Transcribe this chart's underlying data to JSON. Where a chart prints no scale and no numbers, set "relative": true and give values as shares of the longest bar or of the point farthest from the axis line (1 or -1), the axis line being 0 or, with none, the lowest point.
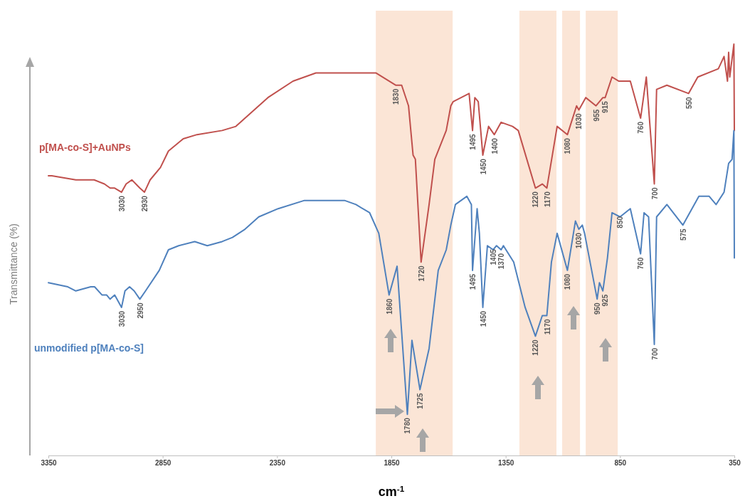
{
  "chart_data": {
    "type": "line",
    "xlabel": "cm$^{-1}$",
    "ylabel": "Transmittance (%)",
    "relative": true,
    "xlim": [
      3350,
      350
    ],
    "xticks": [
      3350,
      2850,
      2350,
      1850,
      1350,
      850,
      350
    ],
    "tick_labels": "x",
    "grid": false,
    "legend": false,
    "marker": "none",
    "line_style": "solid",
    "series": [
      {
        "name": "p[MA-co-S]+AuNPs",
        "color": "#c0504d",
        "x": [
          3350,
          3335,
          3230,
          3150,
          3105,
          3080,
          3060,
          3030,
          3010,
          2985,
          2950,
          2930,
          2905,
          2860,
          2825,
          2760,
          2700,
          2590,
          2530,
          2470,
          2390,
          2280,
          2180,
          2080,
          1918,
          1830,
          1805,
          1775,
          1755,
          1745,
          1720,
          1685,
          1660,
          1610,
          1590,
          1580,
          1510,
          1495,
          1485,
          1470,
          1450,
          1425,
          1400,
          1370,
          1320,
          1295,
          1220,
          1190,
          1170,
          1125,
          1080,
          1040,
          1030,
          1000,
          955,
          925,
          915,
          885,
          855,
          805,
          760,
          735,
          700,
          690,
          645,
          550,
          510,
          420,
          395,
          380,
          375,
          370,
          352,
          350
        ],
        "values": [
          0.68,
          0.68,
          0.67,
          0.67,
          0.66,
          0.65,
          0.65,
          0.64,
          0.66,
          0.67,
          0.65,
          0.64,
          0.67,
          0.7,
          0.74,
          0.77,
          0.78,
          0.79,
          0.8,
          0.83,
          0.87,
          0.91,
          0.93,
          0.93,
          0.93,
          0.9,
          0.9,
          0.85,
          0.73,
          0.72,
          0.47,
          0.61,
          0.72,
          0.79,
          0.85,
          0.86,
          0.88,
          0.79,
          0.87,
          0.86,
          0.73,
          0.8,
          0.78,
          0.81,
          0.8,
          0.79,
          0.65,
          0.66,
          0.65,
          0.8,
          0.78,
          0.85,
          0.84,
          0.87,
          0.85,
          0.87,
          0.87,
          0.92,
          0.91,
          0.91,
          0.82,
          0.92,
          0.66,
          0.89,
          0.9,
          0.88,
          0.92,
          0.94,
          0.97,
          0.91,
          0.98,
          0.92,
          1,
          0.79
        ]
      },
      {
        "name": "unmodified p[MA-co-S]",
        "color": "#4f81bd",
        "x": [
          3350,
          3265,
          3230,
          3165,
          3148,
          3115,
          3095,
          3080,
          3060,
          3030,
          3015,
          2995,
          2975,
          2950,
          2925,
          2865,
          2825,
          2780,
          2710,
          2655,
          2590,
          2545,
          2490,
          2430,
          2345,
          2230,
          2125,
          2055,
          2005,
          1945,
          1905,
          1860,
          1825,
          1780,
          1760,
          1725,
          1685,
          1645,
          1610,
          1590,
          1570,
          1520,
          1500,
          1495,
          1475,
          1465,
          1450,
          1430,
          1405,
          1390,
          1370,
          1360,
          1315,
          1265,
          1220,
          1190,
          1170,
          1150,
          1125,
          1080,
          1045,
          1030,
          1015,
          1005,
          950,
          940,
          925,
          905,
          885,
          850,
          805,
          760,
          745,
          725,
          700,
          690,
          645,
          575,
          505,
          460,
          430,
          395,
          375,
          360,
          352,
          350
        ],
        "values": [
          0.42,
          0.41,
          0.4,
          0.41,
          0.41,
          0.39,
          0.39,
          0.38,
          0.39,
          0.36,
          0.4,
          0.41,
          0.4,
          0.38,
          0.4,
          0.45,
          0.5,
          0.51,
          0.52,
          0.51,
          0.52,
          0.53,
          0.55,
          0.58,
          0.6,
          0.62,
          0.62,
          0.62,
          0.61,
          0.59,
          0.54,
          0.39,
          0.46,
          0.1,
          0.28,
          0.16,
          0.26,
          0.45,
          0.5,
          0.56,
          0.61,
          0.63,
          0.61,
          0.45,
          0.6,
          0.54,
          0.36,
          0.51,
          0.5,
          0.51,
          0.5,
          0.51,
          0.47,
          0.36,
          0.29,
          0.34,
          0.34,
          0.47,
          0.54,
          0.45,
          0.57,
          0.55,
          0.56,
          0.54,
          0.38,
          0.42,
          0.4,
          0.48,
          0.59,
          0.58,
          0.6,
          0.49,
          0.59,
          0.58,
          0.27,
          0.58,
          0.61,
          0.56,
          0.63,
          0.63,
          0.61,
          0.64,
          0.71,
          0.72,
          0.79,
          0.48
        ]
      }
    ],
    "bands": [
      {
        "axis": "x",
        "from": 1918,
        "to": 1582,
        "color": "#fbe5d6"
      },
      {
        "axis": "x",
        "from": 1290,
        "to": 1128,
        "color": "#fbe5d6"
      },
      {
        "axis": "x",
        "from": 1103,
        "to": 1025,
        "color": "#fbe5d6"
      },
      {
        "axis": "x",
        "from": 1000,
        "to": 860,
        "color": "#fbe5d6"
      }
    ],
    "annotations": [
      {
        "text": "3030",
        "x": 3030,
        "y": 0.64
      },
      {
        "text": "2930",
        "x": 2930,
        "y": 0.64
      },
      {
        "text": "1830",
        "x": 1830,
        "y": 0.9
      },
      {
        "text": "1720",
        "x": 1720,
        "y": 0.47
      },
      {
        "text": "1495",
        "x": 1495,
        "y": 0.79
      },
      {
        "text": "1450",
        "x": 1450,
        "y": 0.73
      },
      {
        "text": "1400",
        "x": 1400,
        "y": 0.78
      },
      {
        "text": "1220",
        "x": 1220,
        "y": 0.65
      },
      {
        "text": "1170",
        "x": 1170,
        "y": 0.65
      },
      {
        "text": "1080",
        "x": 1080,
        "y": 0.78
      },
      {
        "text": "1030",
        "x": 1030,
        "y": 0.84
      },
      {
        "text": "955",
        "x": 955,
        "y": 0.85
      },
      {
        "text": "915",
        "x": 915,
        "y": 0.87
      },
      {
        "text": "760",
        "x": 760,
        "y": 0.82
      },
      {
        "text": "700",
        "x": 700,
        "y": 0.66
      },
      {
        "text": "550",
        "x": 550,
        "y": 0.88
      },
      {
        "text": "3030",
        "x": 3030,
        "y": 0.36
      },
      {
        "text": "2950",
        "x": 2950,
        "y": 0.38
      },
      {
        "text": "1860",
        "x": 1860,
        "y": 0.39
      },
      {
        "text": "1780",
        "x": 1780,
        "y": 0.1
      },
      {
        "text": "1725",
        "x": 1725,
        "y": 0.16
      },
      {
        "text": "1495",
        "x": 1495,
        "y": 0.45
      },
      {
        "text": "1450",
        "x": 1450,
        "y": 0.36
      },
      {
        "text": "1405",
        "x": 1405,
        "y": 0.51
      },
      {
        "text": "1370",
        "x": 1370,
        "y": 0.5
      },
      {
        "text": "1220",
        "x": 1220,
        "y": 0.29
      },
      {
        "text": "1170",
        "x": 1170,
        "y": 0.34
      },
      {
        "text": "1080",
        "x": 1080,
        "y": 0.45
      },
      {
        "text": "1030",
        "x": 1030,
        "y": 0.55
      },
      {
        "text": "950",
        "x": 950,
        "y": 0.38
      },
      {
        "text": "925",
        "x": 925,
        "y": 0.4
      },
      {
        "text": "850",
        "x": 850,
        "y": 0.59
      },
      {
        "text": "760",
        "x": 760,
        "y": 0.49
      },
      {
        "text": "700",
        "x": 700,
        "y": 0.27
      },
      {
        "text": "575",
        "x": 575,
        "y": 0.56
      }
    ]
  }
}
